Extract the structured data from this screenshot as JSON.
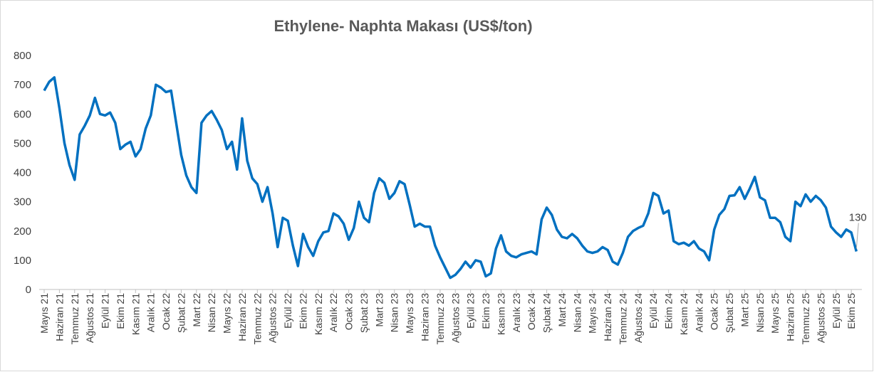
{
  "chart_data": {
    "type": "line",
    "title": "Ethylene- Naphta Makası (US$/ton)",
    "categories": [
      "Mayıs 21",
      null,
      null,
      "Haziran 21",
      null,
      null,
      "Temmuz 21",
      null,
      null,
      "Ağustos 21",
      null,
      null,
      "Eylül 21",
      null,
      null,
      "Ekim 21",
      null,
      null,
      "Kasım 21",
      null,
      null,
      "Aralık 21",
      null,
      null,
      "Ocak 22",
      null,
      null,
      "Şubat 22",
      null,
      null,
      "Mart 22",
      null,
      null,
      "Nisan 22",
      null,
      null,
      "Mayıs 22",
      null,
      null,
      "Haziran 22",
      null,
      null,
      "Temmuz 22",
      null,
      null,
      "Ağustos 22",
      null,
      null,
      "Eylül 22",
      null,
      null,
      "Ekim 22",
      null,
      null,
      "Kasım 22",
      null,
      null,
      "Aralık 22",
      null,
      null,
      "Ocak 23",
      null,
      null,
      "Şubat 23",
      null,
      null,
      "Mart 23",
      null,
      null,
      "Nisan 23",
      null,
      null,
      "Mayıs 23",
      null,
      null,
      "Haziran 23",
      null,
      null,
      "Temmuz 23",
      null,
      null,
      "Ağustos 23",
      null,
      null,
      "Eylül 23",
      null,
      null,
      "Ekim 23",
      null,
      null,
      "Kasım 23",
      null,
      null,
      "Aralık 23",
      null,
      null,
      "Ocak 24",
      null,
      null,
      "Şubat 24",
      null,
      null,
      "Mart 24",
      null,
      null,
      "Nisan 24",
      null,
      null,
      "Mayıs 24",
      null,
      null,
      "Haziran 24",
      null,
      null,
      "Temmuz 24",
      null,
      null,
      "Ağustos 24",
      null,
      null,
      "Eylül 24",
      null,
      null,
      "Ekim 24",
      null,
      null,
      "Kasım 24",
      null,
      null,
      "Aralık 24",
      null,
      null,
      "Ocak 25",
      null,
      null,
      "Şubat 25",
      null,
      null,
      "Mart 25",
      null,
      null,
      "Nisan 25",
      null,
      null,
      "Mayıs 25",
      null,
      null,
      "Haziran 25",
      null,
      null,
      "Temmuz 25",
      null,
      null,
      "Ağustos 25",
      null,
      null,
      "Eylül 25",
      null,
      null,
      "Ekim 25",
      null
    ],
    "series": [
      {
        "name": "Ethylene- Naphta Makası",
        "color": "#0070c0",
        "values": [
          680,
          710,
          725,
          620,
          500,
          425,
          375,
          530,
          560,
          595,
          655,
          600,
          595,
          605,
          570,
          480,
          495,
          505,
          455,
          480,
          550,
          595,
          700,
          690,
          675,
          680,
          570,
          460,
          390,
          350,
          330,
          570,
          595,
          610,
          580,
          545,
          480,
          505,
          410,
          585,
          440,
          380,
          360,
          300,
          350,
          260,
          145,
          245,
          235,
          150,
          80,
          190,
          145,
          115,
          165,
          195,
          200,
          260,
          250,
          225,
          170,
          210,
          300,
          245,
          230,
          330,
          380,
          365,
          310,
          330,
          370,
          360,
          290,
          215,
          225,
          215,
          215,
          150,
          110,
          75,
          40,
          50,
          70,
          95,
          75,
          100,
          95,
          45,
          55,
          140,
          185,
          130,
          115,
          110,
          120,
          125,
          130,
          120,
          240,
          280,
          255,
          205,
          180,
          175,
          190,
          175,
          150,
          130,
          125,
          130,
          145,
          135,
          95,
          85,
          125,
          180,
          200,
          210,
          218,
          260,
          330,
          320,
          260,
          270,
          165,
          155,
          160,
          150,
          165,
          140,
          130,
          100,
          205,
          255,
          275,
          320,
          322,
          350,
          310,
          345,
          385,
          315,
          305,
          245,
          245,
          230,
          180,
          165,
          300,
          285,
          325,
          300,
          320,
          305,
          280,
          215,
          195,
          180,
          205,
          195,
          130
        ]
      }
    ],
    "ylim": [
      0,
      800
    ],
    "yticks": [
      0,
      100,
      200,
      300,
      400,
      500,
      600,
      700,
      800
    ],
    "grid": false
  }
}
